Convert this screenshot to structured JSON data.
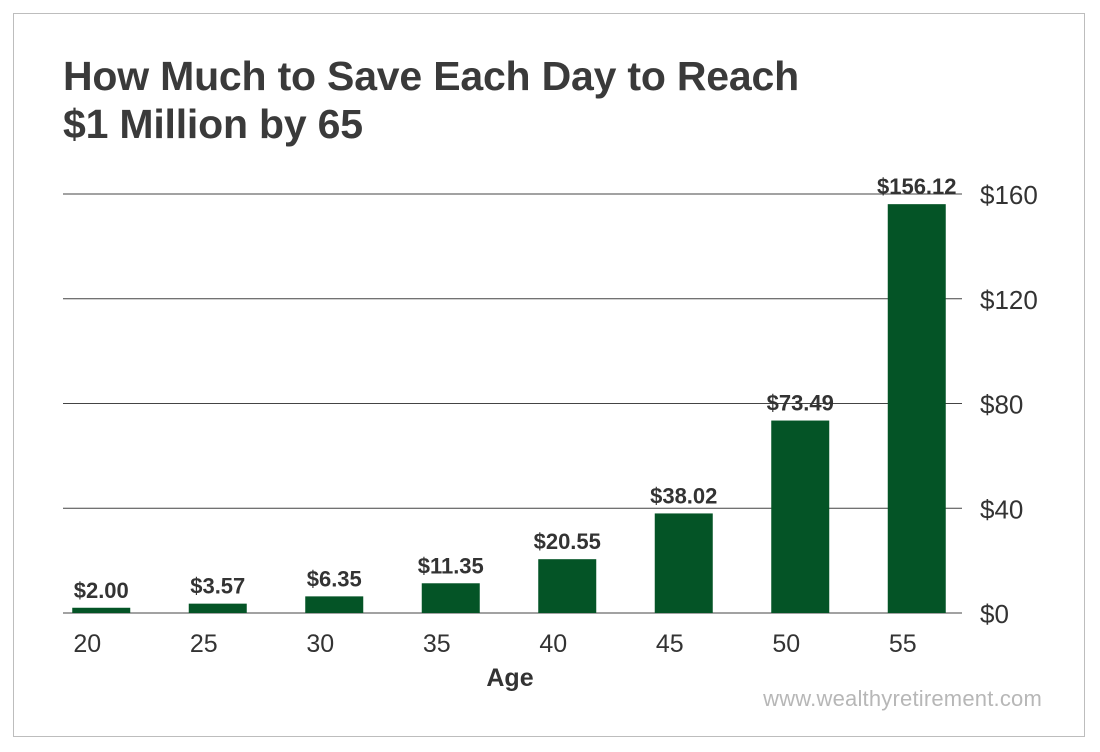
{
  "chart_data": {
    "type": "bar",
    "title_lines": [
      "How Much to Save Each Day to Reach",
      "$1 Million by 65"
    ],
    "xlabel": "Age",
    "ylabel": "",
    "categories": [
      "20",
      "25",
      "30",
      "35",
      "40",
      "45",
      "50",
      "55"
    ],
    "values": [
      2.0,
      3.57,
      6.35,
      11.35,
      20.55,
      38.02,
      73.49,
      156.12
    ],
    "data_labels": [
      "$2.00",
      "$3.57",
      "$6.35",
      "$11.35",
      "$20.55",
      "$38.02",
      "$73.49",
      "$156.12"
    ],
    "ylim": [
      0,
      160
    ],
    "yticks": [
      0,
      40,
      80,
      120,
      160
    ],
    "ytick_labels": [
      "$0",
      "$40",
      "$80",
      "$120",
      "$160"
    ],
    "y_axis_position": "right",
    "grid": true,
    "legend": "none",
    "colors": {
      "bar": "#045426",
      "grid": "#444444",
      "text": "#333333"
    }
  },
  "footer": {
    "source": "www.wealthyretirement.com"
  }
}
